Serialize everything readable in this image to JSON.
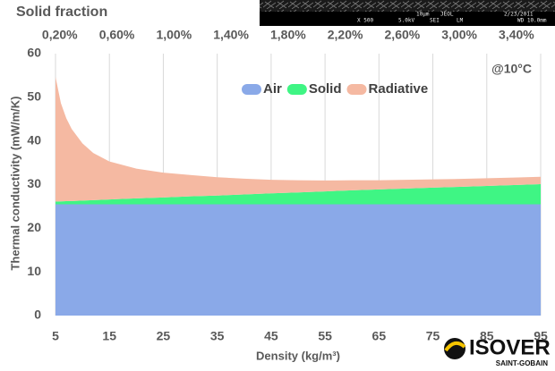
{
  "chart_data": {
    "type": "stacked_area",
    "x2label": "Solid fraction",
    "annotation": "@10°C",
    "xlabel": "Density (kg/m³)",
    "ylabel": "Thermal conductivity (mW/m/K)",
    "x": [
      5,
      6,
      7,
      8,
      10,
      12,
      15,
      20,
      25,
      30,
      35,
      40,
      45,
      50,
      55,
      60,
      65,
      70,
      75,
      80,
      85,
      90,
      95
    ],
    "series": [
      {
        "name": "Air",
        "color": "#8aa9e8",
        "values": [
          25.5,
          25.5,
          25.5,
          25.5,
          25.5,
          25.5,
          25.5,
          25.5,
          25.5,
          25.5,
          25.5,
          25.5,
          25.5,
          25.5,
          25.5,
          25.5,
          25.5,
          25.5,
          25.5,
          25.5,
          25.5,
          25.5,
          25.5
        ]
      },
      {
        "name": "Solid",
        "color": "#3ff584",
        "values": [
          0.6,
          0.65,
          0.7,
          0.75,
          0.85,
          0.95,
          1.1,
          1.35,
          1.55,
          1.8,
          2.0,
          2.25,
          2.5,
          2.7,
          2.95,
          3.2,
          3.4,
          3.6,
          3.8,
          4.0,
          4.2,
          4.4,
          4.6
        ]
      },
      {
        "name": "Radiative",
        "color": "#f5b9a2",
        "values": [
          28.6,
          22.5,
          19,
          16.5,
          13.1,
          10.8,
          8.7,
          6.8,
          5.7,
          4.9,
          4.2,
          3.6,
          3.1,
          2.8,
          2.5,
          2.3,
          2.1,
          2.0,
          1.9,
          1.8,
          1.75,
          1.7,
          1.7
        ]
      }
    ],
    "xlim": [
      5,
      95
    ],
    "xticks": [
      5,
      15,
      25,
      35,
      45,
      55,
      65,
      75,
      85,
      95
    ],
    "ylim": [
      0,
      60
    ],
    "yticks": [
      0,
      10,
      20,
      30,
      40,
      50,
      60
    ],
    "x2lim": [
      0.17,
      3.57
    ],
    "x2ticks": [
      {
        "value": 0.2,
        "label": "0,20%"
      },
      {
        "value": 0.6,
        "label": "0,60%"
      },
      {
        "value": 1.0,
        "label": "1,00%"
      },
      {
        "value": 1.4,
        "label": "1,40%"
      },
      {
        "value": 1.8,
        "label": "1,80%"
      },
      {
        "value": 2.2,
        "label": "2,20%"
      },
      {
        "value": 2.6,
        "label": "2,60%"
      },
      {
        "value": 3.0,
        "label": "3,00%"
      },
      {
        "value": 3.4,
        "label": "3,40%"
      }
    ],
    "grid": "x",
    "legend": "top"
  },
  "sem_caption": [
    "10µm",
    "JEOL",
    "2/23/2011",
    "X 500",
    "5.0kV",
    "SEI",
    "LM",
    "WD 10.0mm"
  ],
  "logo": {
    "brand": "ISOVER",
    "parent": "SAINT-GOBAIN"
  }
}
